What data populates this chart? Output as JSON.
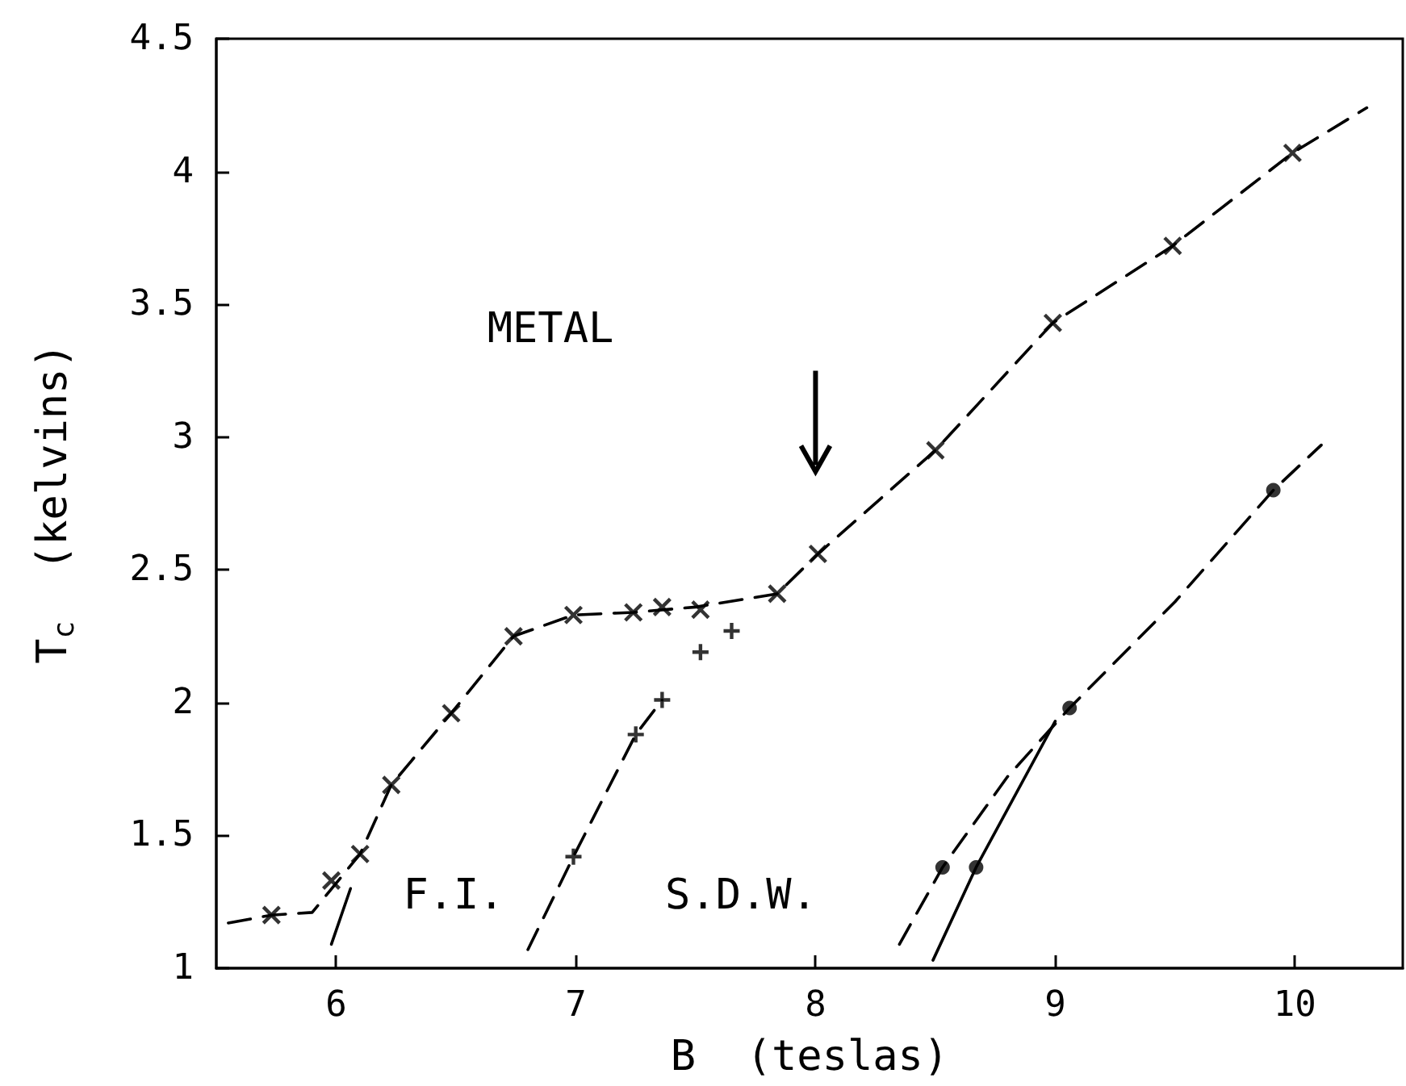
{
  "chart_data": {
    "type": "scatter",
    "xlabel": "B  (teslas)",
    "ylabel": "T$_{c}$  (kelvins)",
    "xlim": [
      5.5,
      10.45
    ],
    "xticks": [
      6,
      7,
      8,
      9,
      10
    ],
    "ylim": [
      1,
      4.5
    ],
    "yticks": [
      1,
      1.5,
      2,
      2.5,
      3,
      3.5,
      4,
      4.5
    ],
    "grid": false,
    "series": [
      {
        "marker": "cross",
        "color": "#000000",
        "x": [
          5.73,
          5.98,
          6.1,
          6.23,
          6.48,
          6.74,
          6.99,
          7.24,
          7.36,
          7.52,
          7.84,
          8.01,
          8.5,
          8.99,
          9.49,
          9.99
        ],
        "values": [
          1.2,
          1.33,
          1.43,
          1.69,
          1.96,
          2.25,
          2.33,
          2.34,
          2.36,
          2.35,
          2.41,
          2.56,
          2.95,
          3.43,
          3.72,
          4.07
        ]
      },
      {
        "marker": "plus",
        "color": "#000000",
        "x": [
          6.99,
          7.25,
          7.36,
          7.52,
          7.65
        ],
        "values": [
          1.42,
          1.88,
          2.01,
          2.19,
          2.27
        ]
      },
      {
        "marker": "circle",
        "color": "#000000",
        "x": [
          8.53,
          8.67,
          9.06,
          9.91
        ],
        "values": [
          1.38,
          1.38,
          1.98,
          2.8
        ]
      },
      {
        "type": "line",
        "line_style": "dashed",
        "marker": "none",
        "color": "#000000",
        "x": [
          5.55,
          5.73,
          5.9,
          6.1,
          6.23,
          6.48,
          6.74,
          6.99,
          7.24,
          7.5,
          7.84,
          8.01,
          8.5,
          8.99,
          9.49,
          9.99,
          10.3
        ],
        "values": [
          1.17,
          1.2,
          1.21,
          1.43,
          1.69,
          1.96,
          2.25,
          2.33,
          2.34,
          2.36,
          2.41,
          2.56,
          2.95,
          3.43,
          3.72,
          4.07,
          4.24
        ]
      },
      {
        "type": "line",
        "line_style": "dashed",
        "marker": "none",
        "color": "#000000",
        "x": [
          6.8,
          6.99,
          7.25,
          7.36
        ],
        "values": [
          1.07,
          1.42,
          1.88,
          2.01
        ]
      },
      {
        "type": "line",
        "line_style": "solid",
        "marker": "none",
        "color": "#000000",
        "x": [
          5.98,
          6.06
        ],
        "values": [
          1.09,
          1.3
        ]
      },
      {
        "type": "line",
        "line_style": "dashed",
        "marker": "none",
        "color": "#000000",
        "x": [
          8.35,
          8.53,
          8.8,
          9.06,
          9.5,
          9.91,
          10.11
        ],
        "values": [
          1.09,
          1.38,
          1.72,
          1.98,
          2.38,
          2.8,
          2.97
        ]
      },
      {
        "type": "line",
        "line_style": "solid",
        "marker": "none",
        "color": "#000000",
        "x": [
          8.49,
          8.67,
          9.0
        ],
        "values": [
          1.03,
          1.38,
          1.93
        ]
      }
    ],
    "annotations": [
      "METAL",
      "F.I.",
      "S.D.W."
    ]
  }
}
